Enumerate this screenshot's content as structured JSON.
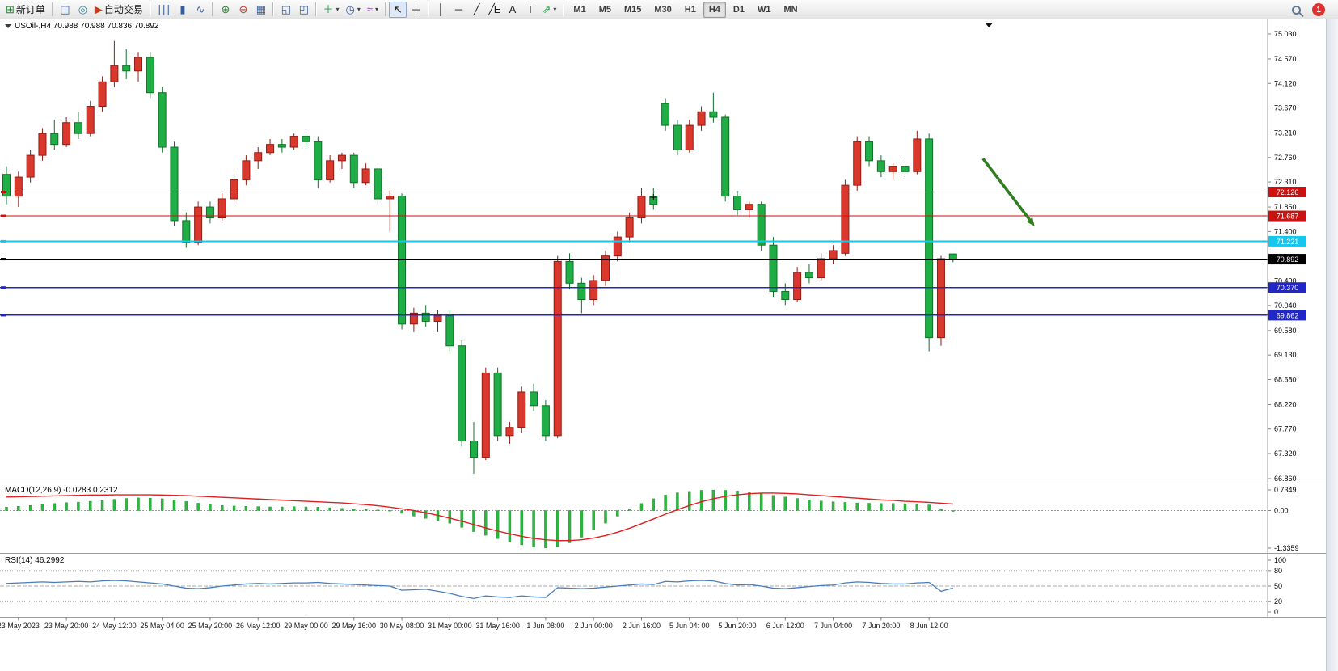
{
  "toolbar": {
    "groups": [
      [
        {
          "name": "new-order-button",
          "glyph": "⊞",
          "glyph_color": "#2e7d32",
          "label": "新订单"
        }
      ],
      [
        {
          "name": "market-watch-button",
          "glyph": "◫",
          "glyph_color": "#2b5fa3"
        },
        {
          "name": "data-window-button",
          "glyph": "◎",
          "glyph_color": "#3b7a8c"
        },
        {
          "name": "auto-trading-button",
          "glyph": "▶",
          "glyph_color": "#c83c1e",
          "label": "自动交易"
        }
      ],
      [
        {
          "name": "bar-chart-button",
          "glyph": "∣∣∣",
          "glyph_color": "#355e9e"
        },
        {
          "name": "candlestick-chart-button",
          "glyph": "▮",
          "glyph_color": "#355e9e"
        },
        {
          "name": "line-chart-button",
          "glyph": "∿",
          "glyph_color": "#355e9e"
        }
      ],
      [
        {
          "name": "zoom-in-button",
          "glyph": "⊕",
          "glyph_color": "#2e7d32"
        },
        {
          "name": "zoom-out-button",
          "glyph": "⊖",
          "glyph_color": "#c0392b"
        },
        {
          "name": "arrange-windows-button",
          "glyph": "▦",
          "glyph_color": "#355e9e"
        }
      ],
      [
        {
          "name": "tile-windows-button",
          "glyph": "◱",
          "glyph_color": "#355e9e"
        },
        {
          "name": "cascade-windows-button",
          "glyph": "◰",
          "glyph_color": "#355e9e"
        }
      ],
      [
        {
          "name": "new-chart-button",
          "glyph": "＋",
          "glyph_color": "#1e9e40",
          "dropdown": true
        },
        {
          "name": "profiles-button",
          "glyph": "◷",
          "glyph_color": "#355e9e",
          "dropdown": true
        },
        {
          "name": "indicators-button",
          "glyph": "≈",
          "glyph_color": "#8e44ad",
          "dropdown": true
        }
      ],
      [
        {
          "name": "cursor-button",
          "glyph": "↖",
          "glyph_color": "#222222",
          "active": true
        },
        {
          "name": "crosshair-button",
          "glyph": "┼",
          "glyph_color": "#222222"
        }
      ],
      [
        {
          "name": "vertical-line-button",
          "glyph": "│",
          "glyph_color": "#222222"
        },
        {
          "name": "horizontal-line-button",
          "glyph": "─",
          "glyph_color": "#222222"
        },
        {
          "name": "trendline-button",
          "glyph": "╱",
          "glyph_color": "#222222"
        },
        {
          "name": "equidistant-channel-button",
          "glyph": "╱E",
          "glyph_color": "#222222"
        },
        {
          "name": "text-button",
          "glyph": "A",
          "glyph_color": "#222222"
        },
        {
          "name": "text-label-button",
          "glyph": "T",
          "glyph_color": "#222222"
        },
        {
          "name": "arrows-button",
          "glyph": "⇗",
          "glyph_color": "#1e9e40",
          "dropdown": true
        }
      ]
    ],
    "timeframes": [
      "M1",
      "M5",
      "M15",
      "M30",
      "H1",
      "H4",
      "D1",
      "W1",
      "MN"
    ],
    "active_timeframe": "H4",
    "right": {
      "badge": "1"
    }
  },
  "chart_data": {
    "type": "candlestick",
    "symbol": "USOil-",
    "timeframe": "H4",
    "title": "USOil-,H4 70.988 70.988 70.836 70.892",
    "current_ohlc": {
      "open": 70.988,
      "high": 70.988,
      "low": 70.836,
      "close": 70.892
    },
    "colors": {
      "up": "#da382c",
      "up_edge": "#8f1d14",
      "down": "#1fad45",
      "down_edge": "#0f7129"
    },
    "price_axis": {
      "ylim": [
        66.86,
        75.03
      ],
      "ticks": [
        "75.030",
        "74.570",
        "74.120",
        "73.670",
        "73.210",
        "72.760",
        "72.310",
        "71.850",
        "71.400",
        "70.940",
        "70.490",
        "70.040",
        "69.580",
        "69.130",
        "68.680",
        "68.220",
        "67.770",
        "67.320",
        "66.860"
      ]
    },
    "candles": [
      [
        72.45,
        72.6,
        71.9,
        72.05
      ],
      [
        72.05,
        72.5,
        71.85,
        72.4
      ],
      [
        72.4,
        72.9,
        72.3,
        72.8
      ],
      [
        72.8,
        73.3,
        72.7,
        73.2
      ],
      [
        73.2,
        73.45,
        72.9,
        73.0
      ],
      [
        73.0,
        73.5,
        72.95,
        73.4
      ],
      [
        73.4,
        73.6,
        73.1,
        73.2
      ],
      [
        73.2,
        73.8,
        73.15,
        73.7
      ],
      [
        73.7,
        74.25,
        73.6,
        74.15
      ],
      [
        74.15,
        74.9,
        74.05,
        74.45
      ],
      [
        74.45,
        74.75,
        74.2,
        74.35
      ],
      [
        74.35,
        74.7,
        74.15,
        74.6
      ],
      [
        74.6,
        74.7,
        73.85,
        73.95
      ],
      [
        73.95,
        74.05,
        72.85,
        72.95
      ],
      [
        72.95,
        73.05,
        71.5,
        71.6
      ],
      [
        71.6,
        71.75,
        71.1,
        71.2
      ],
      [
        71.2,
        71.95,
        71.15,
        71.85
      ],
      [
        71.85,
        71.95,
        71.55,
        71.65
      ],
      [
        71.65,
        72.1,
        71.6,
        72.0
      ],
      [
        72.0,
        72.45,
        71.9,
        72.35
      ],
      [
        72.35,
        72.8,
        72.25,
        72.7
      ],
      [
        72.7,
        72.95,
        72.55,
        72.85
      ],
      [
        72.85,
        73.1,
        72.8,
        73.0
      ],
      [
        73.0,
        73.1,
        72.85,
        72.95
      ],
      [
        72.95,
        73.2,
        72.9,
        73.15
      ],
      [
        73.15,
        73.2,
        72.95,
        73.05
      ],
      [
        73.05,
        73.15,
        72.2,
        72.35
      ],
      [
        72.35,
        72.8,
        72.3,
        72.7
      ],
      [
        72.7,
        72.85,
        72.55,
        72.8
      ],
      [
        72.8,
        72.85,
        72.2,
        72.3
      ],
      [
        72.3,
        72.65,
        72.25,
        72.55
      ],
      [
        72.55,
        72.6,
        71.9,
        72.0
      ],
      [
        72.0,
        72.15,
        71.4,
        72.05
      ],
      [
        72.05,
        72.1,
        69.6,
        69.7
      ],
      [
        69.7,
        70.0,
        69.55,
        69.9
      ],
      [
        69.9,
        70.05,
        69.65,
        69.75
      ],
      [
        69.75,
        69.95,
        69.55,
        69.85
      ],
      [
        69.85,
        69.95,
        69.2,
        69.3
      ],
      [
        69.3,
        69.4,
        67.45,
        67.55
      ],
      [
        67.55,
        67.9,
        66.95,
        67.25
      ],
      [
        67.25,
        68.9,
        67.2,
        68.8
      ],
      [
        68.8,
        68.9,
        67.55,
        67.65
      ],
      [
        67.65,
        67.9,
        67.5,
        67.8
      ],
      [
        67.8,
        68.55,
        67.7,
        68.45
      ],
      [
        68.45,
        68.6,
        68.1,
        68.2
      ],
      [
        68.2,
        68.3,
        67.55,
        67.65
      ],
      [
        67.65,
        70.95,
        67.6,
        70.85
      ],
      [
        70.85,
        71.0,
        70.35,
        70.45
      ],
      [
        70.45,
        70.55,
        69.9,
        70.15
      ],
      [
        70.15,
        70.6,
        70.05,
        70.5
      ],
      [
        70.5,
        71.05,
        70.4,
        70.95
      ],
      [
        70.95,
        71.4,
        70.85,
        71.3
      ],
      [
        71.3,
        71.75,
        71.2,
        71.65
      ],
      [
        71.65,
        72.2,
        71.55,
        72.05
      ],
      [
        72.05,
        72.2,
        71.8,
        71.9
      ],
      [
        73.75,
        73.85,
        73.25,
        73.35
      ],
      [
        73.35,
        73.45,
        72.8,
        72.9
      ],
      [
        72.9,
        73.45,
        72.85,
        73.35
      ],
      [
        73.35,
        73.7,
        73.25,
        73.6
      ],
      [
        73.6,
        73.95,
        73.4,
        73.5
      ],
      [
        73.5,
        73.55,
        71.95,
        72.05
      ],
      [
        72.05,
        72.15,
        71.7,
        71.8
      ],
      [
        71.8,
        71.95,
        71.65,
        71.9
      ],
      [
        71.9,
        71.95,
        71.05,
        71.15
      ],
      [
        71.15,
        71.3,
        70.2,
        70.3
      ],
      [
        70.3,
        70.45,
        70.05,
        70.15
      ],
      [
        70.15,
        70.75,
        70.1,
        70.65
      ],
      [
        70.65,
        70.8,
        70.45,
        70.55
      ],
      [
        70.55,
        71.0,
        70.5,
        70.9
      ],
      [
        70.9,
        71.15,
        70.8,
        71.05
      ],
      [
        71.0,
        72.35,
        70.95,
        72.25
      ],
      [
        72.25,
        73.15,
        72.15,
        73.05
      ],
      [
        73.05,
        73.15,
        72.6,
        72.7
      ],
      [
        72.7,
        72.8,
        72.4,
        72.5
      ],
      [
        72.5,
        72.65,
        72.35,
        72.6
      ],
      [
        72.6,
        72.7,
        72.4,
        72.5
      ],
      [
        72.5,
        73.25,
        72.45,
        73.1
      ],
      [
        73.1,
        73.2,
        69.2,
        69.45
      ],
      [
        69.45,
        70.95,
        69.3,
        70.9
      ],
      [
        70.988,
        70.988,
        70.836,
        70.892
      ]
    ],
    "hlines": [
      {
        "price": 72.126,
        "color": "#cc1111",
        "width": 1.2,
        "label": "72.126"
      },
      {
        "price": 71.687,
        "color": "#cc1111",
        "width": 1.2,
        "label": "71.687"
      },
      {
        "price": 71.221,
        "color": "#15c6ee",
        "width": 2,
        "label": "71.221"
      },
      {
        "price": 70.37,
        "color": "#2026c8",
        "width": 1.6,
        "label": "70.370"
      },
      {
        "price": 69.862,
        "color": "#2026c8",
        "width": 1.6,
        "label": "69.862"
      }
    ],
    "current_price_line": {
      "price": 70.892,
      "color": "#000000",
      "label": "70.892"
    },
    "arrow_annotation": {
      "from_bar": 81.5,
      "from_price": 72.74,
      "to_bar": 85.8,
      "to_price": 71.5,
      "color": "#2e7d1f"
    },
    "cross_marker": {
      "bar": 54,
      "price": 72.03
    },
    "shift_marker_bar": 82,
    "x_label_first_bar": 1,
    "x_label_step": 4,
    "x_labels": [
      "23 May 2023",
      "23 May 20:00",
      "24 May 12:00",
      "25 May 04:00",
      "25 May 20:00",
      "26 May 12:00",
      "29 May 00:00",
      "29 May 16:00",
      "30 May 08:00",
      "31 May 00:00",
      "31 May 16:00",
      "1 Jun 08:00",
      "2 Jun 00:00",
      "2 Jun 16:00",
      "5 Jun 04: 00",
      "5 Jun 20:00",
      "6 Jun 12:00",
      "7 Jun 04:00",
      "7 Jun 20:00",
      "8 Jun 12:00"
    ],
    "macd": {
      "label": "MACD(12,26,9) -0.0283 0.2312",
      "ticks": [
        "0.7349",
        "0.00",
        "-1.3359"
      ],
      "tick_values": [
        0.7349,
        0,
        -1.3359
      ],
      "hist_color": "#2cb83f",
      "signal_color": "#e01f1f",
      "histogram": [
        0.12,
        0.15,
        0.18,
        0.22,
        0.25,
        0.28,
        0.3,
        0.33,
        0.36,
        0.4,
        0.43,
        0.45,
        0.44,
        0.42,
        0.38,
        0.32,
        0.26,
        0.22,
        0.18,
        0.16,
        0.15,
        0.14,
        0.13,
        0.13,
        0.14,
        0.13,
        0.12,
        0.1,
        0.08,
        0.06,
        0.04,
        0.02,
        -0.02,
        -0.1,
        -0.2,
        -0.28,
        -0.35,
        -0.45,
        -0.6,
        -0.75,
        -0.88,
        -1.0,
        -1.12,
        -1.22,
        -1.3,
        -1.33,
        -1.28,
        -1.15,
        -0.95,
        -0.7,
        -0.45,
        -0.2,
        0.05,
        0.25,
        0.42,
        0.55,
        0.63,
        0.68,
        0.72,
        0.73,
        0.72,
        0.7,
        0.66,
        0.6,
        0.54,
        0.48,
        0.43,
        0.38,
        0.34,
        0.31,
        0.29,
        0.27,
        0.26,
        0.25,
        0.25,
        0.24,
        0.24,
        0.2,
        0.05,
        -0.03
      ],
      "signal": [
        0.48,
        0.49,
        0.5,
        0.51,
        0.52,
        0.53,
        0.54,
        0.55,
        0.55,
        0.56,
        0.56,
        0.56,
        0.56,
        0.55,
        0.54,
        0.53,
        0.51,
        0.49,
        0.47,
        0.45,
        0.43,
        0.41,
        0.39,
        0.37,
        0.35,
        0.33,
        0.31,
        0.29,
        0.27,
        0.24,
        0.21,
        0.17,
        0.12,
        0.06,
        0.0,
        -0.08,
        -0.17,
        -0.27,
        -0.38,
        -0.5,
        -0.62,
        -0.73,
        -0.83,
        -0.92,
        -0.99,
        -1.04,
        -1.07,
        -1.07,
        -1.04,
        -0.98,
        -0.89,
        -0.77,
        -0.63,
        -0.47,
        -0.3,
        -0.13,
        0.03,
        0.18,
        0.31,
        0.42,
        0.5,
        0.56,
        0.6,
        0.62,
        0.62,
        0.61,
        0.59,
        0.56,
        0.53,
        0.5,
        0.47,
        0.44,
        0.41,
        0.38,
        0.36,
        0.33,
        0.31,
        0.29,
        0.26,
        0.23
      ]
    },
    "rsi": {
      "label": "RSI(14) 46.2992",
      "ticks": [
        "100",
        "80",
        "50",
        "20",
        "0"
      ],
      "tick_values": [
        100,
        80,
        50,
        20,
        0
      ],
      "levels": [
        80,
        50,
        20
      ],
      "line_color": "#4a7ebb",
      "values": [
        55,
        56,
        57,
        58,
        57,
        58,
        59,
        58,
        60,
        61,
        60,
        58,
        56,
        54,
        50,
        46,
        45,
        47,
        50,
        52,
        54,
        55,
        54,
        55,
        56,
        56,
        57,
        55,
        54,
        53,
        52,
        51,
        50,
        42,
        43,
        44,
        40,
        36,
        30,
        26,
        31,
        29,
        28,
        31,
        29,
        28,
        47,
        46,
        45,
        46,
        48,
        50,
        52,
        54,
        53,
        59,
        58,
        60,
        61,
        60,
        55,
        52,
        53,
        50,
        46,
        45,
        47,
        49,
        51,
        52,
        56,
        58,
        57,
        55,
        54,
        54,
        56,
        57,
        40,
        46.3
      ]
    }
  }
}
